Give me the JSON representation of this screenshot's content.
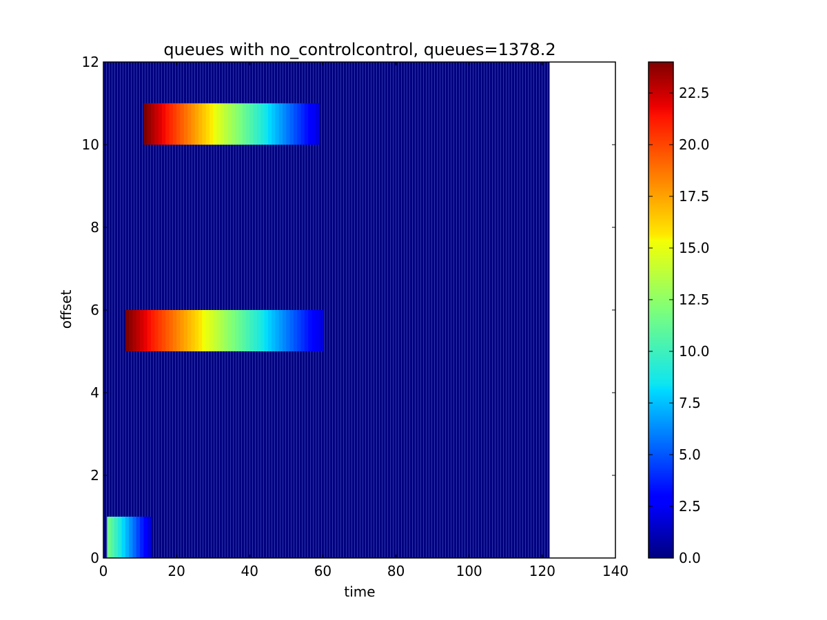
{
  "chart_data": {
    "type": "heatmap",
    "title": "queues with no_controlcontrol, queues=1378.2",
    "xlabel": "time",
    "ylabel": "offset",
    "xlim": [
      0,
      140
    ],
    "ylim": [
      0,
      12
    ],
    "x_ticks": [
      "0",
      "20",
      "40",
      "60",
      "80",
      "100",
      "120",
      "140"
    ],
    "y_ticks": [
      "0",
      "2",
      "4",
      "6",
      "8",
      "10",
      "12"
    ],
    "colormap": "jet",
    "background_fill": {
      "x_range": [
        0,
        122
      ],
      "y_range": [
        0,
        12
      ],
      "value": 0
    },
    "bands": [
      {
        "name": "offset 0 band",
        "y_range": [
          0,
          1
        ],
        "x_start": 1,
        "x_end": 13,
        "v_start": 11.5,
        "v_end": 2.0
      },
      {
        "name": "offset 5 band",
        "y_range": [
          5,
          6
        ],
        "x_start": 6,
        "x_end": 60,
        "v_start": 24.0,
        "v_end": 2.0
      },
      {
        "name": "offset 10 band",
        "y_range": [
          10,
          11
        ],
        "x_start": 11,
        "x_end": 59,
        "v_start": 24.0,
        "v_end": 2.0
      }
    ],
    "colorbar": {
      "range": [
        0,
        24
      ],
      "ticks": [
        "0.0",
        "2.5",
        "5.0",
        "7.5",
        "10.0",
        "12.5",
        "15.0",
        "17.5",
        "20.0",
        "22.5"
      ]
    }
  }
}
